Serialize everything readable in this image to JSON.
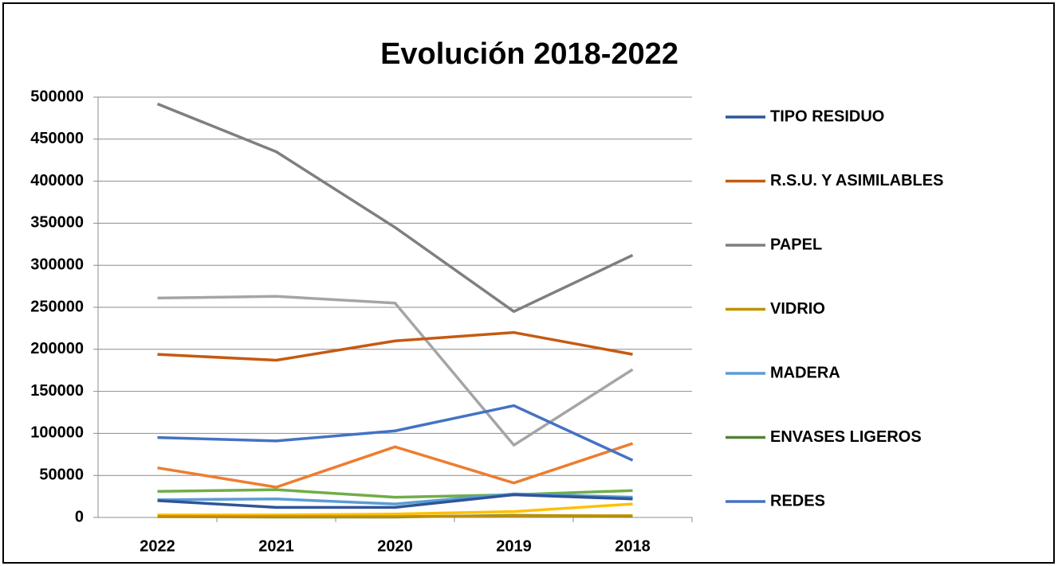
{
  "chart_data": {
    "type": "line",
    "title": "Evolución 2018-2022",
    "categories": [
      "2022",
      "2021",
      "2020",
      "2019",
      "2018"
    ],
    "ylim": [
      0,
      500000
    ],
    "yticks": [
      0,
      50000,
      100000,
      150000,
      200000,
      250000,
      300000,
      350000,
      400000,
      450000,
      500000
    ],
    "grid": true,
    "legend": "right",
    "series": [
      {
        "name": "TIPO RESIDUO",
        "color": "#2f5597",
        "values": [
          20000,
          12000,
          12000,
          27000,
          22000
        ]
      },
      {
        "name": "R.S.U. Y ASIMILABLES",
        "color": "#c55a11",
        "values": [
          194000,
          187000,
          210000,
          220000,
          194000
        ]
      },
      {
        "name": "PAPEL",
        "color": "#7f7f7f",
        "values": [
          492000,
          435000,
          345000,
          245000,
          312000
        ]
      },
      {
        "name": "VIDRIO",
        "color": "#bf9000",
        "values": [
          1000,
          1000,
          1000,
          2000,
          2000
        ]
      },
      {
        "name": "MADERA",
        "color": "#5b9bd5",
        "values": [
          21000,
          22000,
          16000,
          28000,
          24000
        ]
      },
      {
        "name": "ENVASES LIGEROS",
        "color": "#548235",
        "values": [
          1000,
          500,
          500,
          2500,
          1500
        ]
      },
      {
        "name": "REDES",
        "color": "#4472c4",
        "values": [
          95000,
          91000,
          103000,
          133000,
          68000
        ]
      },
      {
        "name": null,
        "color": "#a5a5a5",
        "values": [
          261000,
          263000,
          255000,
          86000,
          176000
        ]
      },
      {
        "name": null,
        "color": "#ed7d31",
        "values": [
          59000,
          36000,
          84000,
          41000,
          88000
        ]
      },
      {
        "name": null,
        "color": "#70ad47",
        "values": [
          31000,
          33000,
          24000,
          27000,
          32000
        ]
      },
      {
        "name": null,
        "color": "#ffc000",
        "values": [
          3000,
          3000,
          4000,
          7000,
          16000
        ]
      }
    ]
  }
}
